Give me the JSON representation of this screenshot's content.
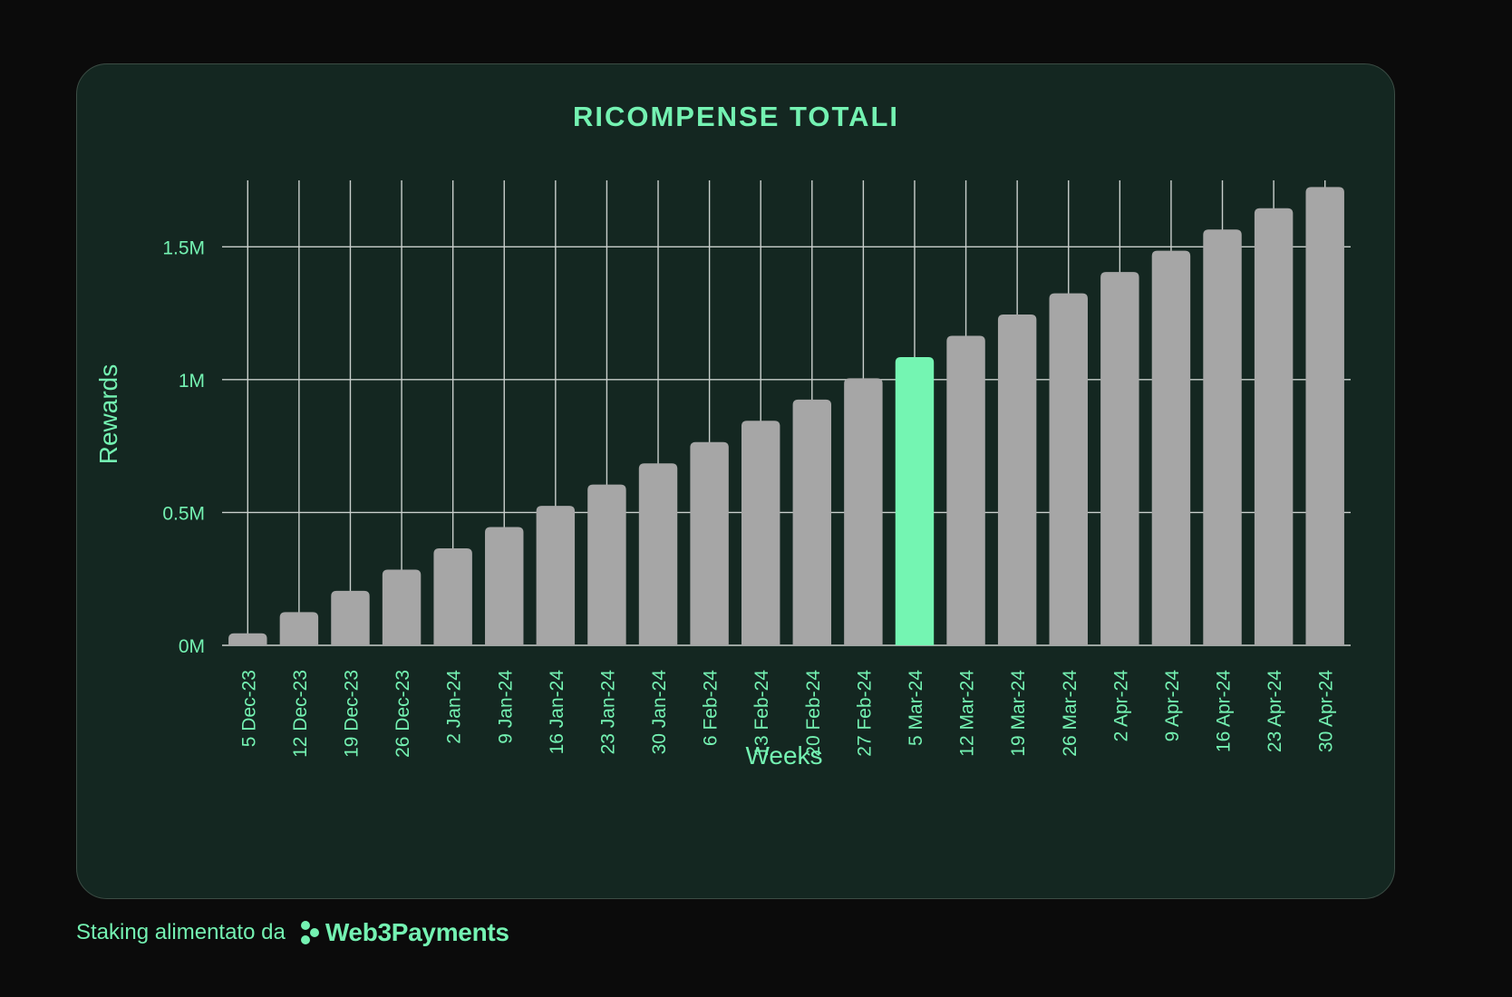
{
  "chart_data": {
    "type": "bar",
    "title": "RICOMPENSE TOTALI",
    "xlabel": "Weeks",
    "ylabel": "Rewards",
    "categories": [
      "5 Dec-23",
      "12 Dec-23",
      "19 Dec-23",
      "26 Dec-23",
      "2 Jan-24",
      "9 Jan-24",
      "16 Jan-24",
      "23 Jan-24",
      "30 Jan-24",
      "6 Feb-24",
      "13 Feb-24",
      "20 Feb-24",
      "27 Feb-24",
      "5 Mar-24",
      "12 Mar-24",
      "19 Mar-24",
      "26 Mar-24",
      "2 Apr-24",
      "9 Apr-24",
      "16 Apr-24",
      "23 Apr-24",
      "30 Apr-24"
    ],
    "values": [
      45000,
      125000,
      205000,
      285000,
      365000,
      445000,
      525000,
      605000,
      685000,
      765000,
      845000,
      925000,
      1005000,
      1085000,
      1165000,
      1245000,
      1325000,
      1405000,
      1485000,
      1565000,
      1645000,
      1725000
    ],
    "highlight_category": "5 Mar-24",
    "ylim": [
      0,
      1750000
    ],
    "yticks": [
      0,
      500000,
      1000000,
      1500000
    ],
    "ytick_labels": [
      "0M",
      "0.5M",
      "1M",
      "1.5M"
    ],
    "grid": true,
    "colors": {
      "bar": "#a6a6a6",
      "highlight": "#74f5b2",
      "text": "#74f2b2",
      "grid": "#c9cfcc"
    }
  },
  "footer": {
    "text": "Staking alimentato da",
    "brand": "Web3Payments",
    "brand_icon": "dots-logo-icon"
  }
}
